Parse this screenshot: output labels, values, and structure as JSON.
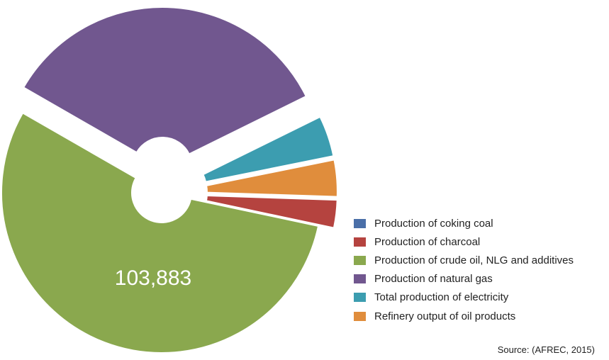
{
  "chart_data": {
    "type": "pie",
    "donut": true,
    "exploded": true,
    "categories": [
      "Production of coking coal",
      "Production of charcoal",
      "Production of crude oil, NLG and additives",
      "Production of natural gas",
      "Total production of electricity",
      "Refinery output of oil products"
    ],
    "values": [
      0,
      5300,
      103883,
      65000,
      7800,
      7000
    ],
    "colors": [
      "#4a6fa8",
      "#b5433f",
      "#8aa84e",
      "#71578f",
      "#3c9db0",
      "#e08d3c"
    ],
    "data_labels": {
      "crude_oil": "103,883"
    },
    "legend_position": "right-bottom"
  },
  "source": "Source: (AFREC, 2015)"
}
